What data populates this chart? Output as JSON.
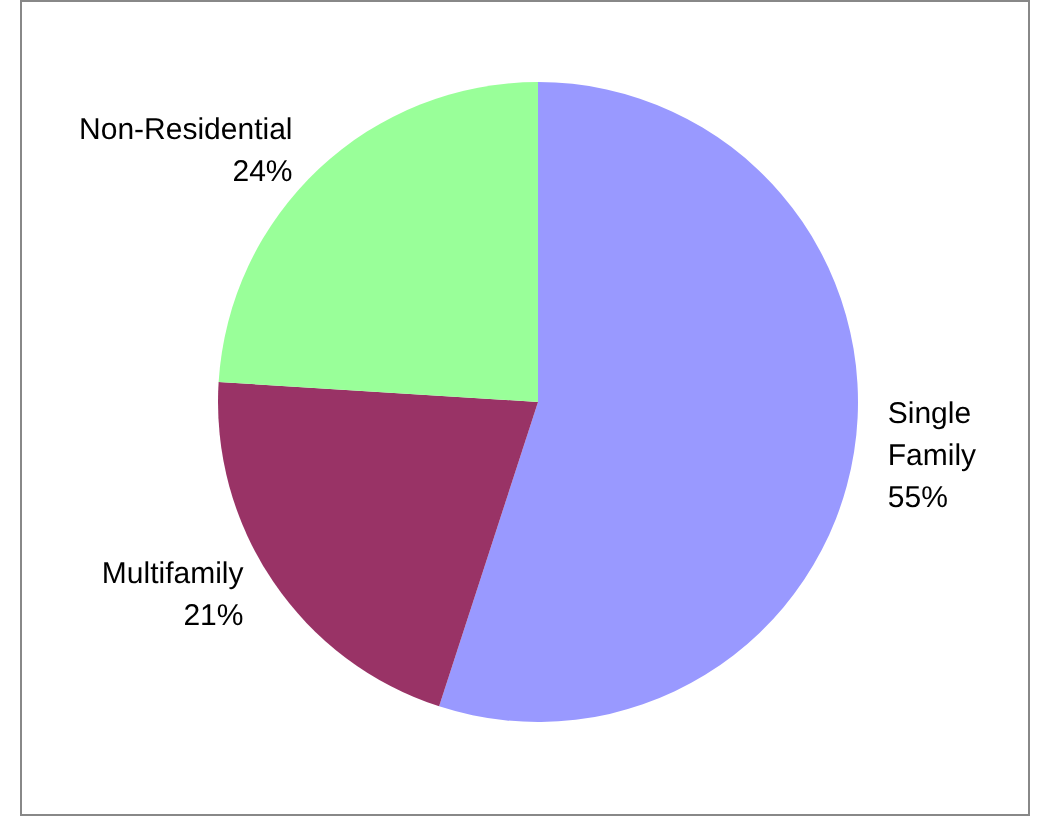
{
  "chart_data": {
    "type": "pie",
    "categories": [
      "Single Family",
      "Multifamily",
      "Non-Residential"
    ],
    "values": [
      55,
      21,
      24
    ],
    "colors": [
      "#9999ff",
      "#993366",
      "#99ff99"
    ],
    "value_labels": [
      "55%",
      "21%",
      "24%"
    ],
    "legend": false
  }
}
